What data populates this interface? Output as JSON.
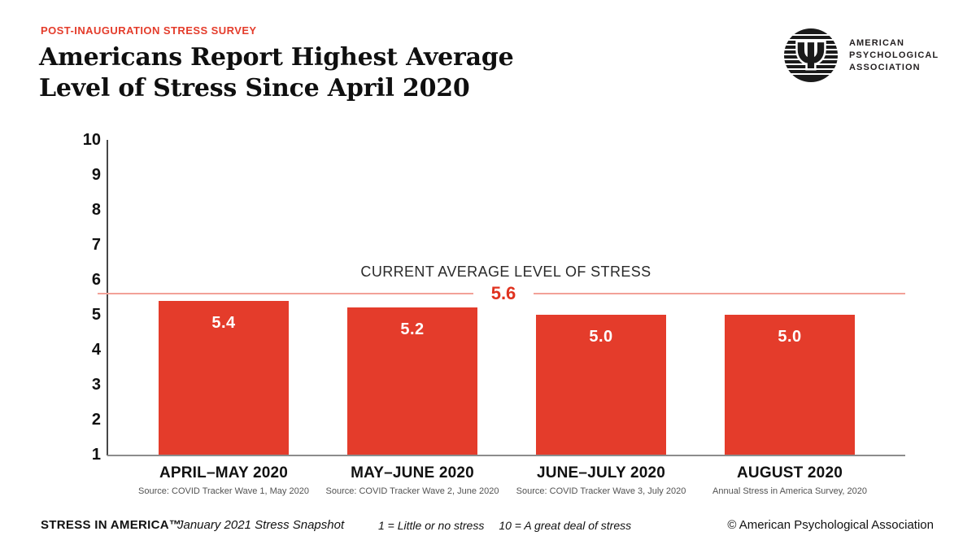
{
  "header": {
    "kicker": "POST-INAUGURATION STRESS SURVEY",
    "title_line1": "Americans Report Highest Average",
    "title_line2": "Level of Stress Since April 2020"
  },
  "logo": {
    "name": "American Psychological Association",
    "lines": [
      "AMERICAN",
      "PSYCHOLOGICAL",
      "ASSOCIATION"
    ]
  },
  "chart_data": {
    "type": "bar",
    "title": "Americans Report Highest Average Level of Stress Since April 2020",
    "categories": [
      "APRIL–MAY 2020",
      "MAY–JUNE 2020",
      "JUNE–JULY 2020",
      "AUGUST 2020"
    ],
    "category_sources": [
      "Source: COVID Tracker Wave 1, May 2020",
      "Source: COVID Tracker Wave 2, June 2020",
      "Source: COVID Tracker Wave 3, July 2020",
      "Annual Stress in America Survey, 2020"
    ],
    "values": [
      5.4,
      5.2,
      5.0,
      5.0
    ],
    "value_labels": [
      "5.4",
      "5.2",
      "5.0",
      "5.0"
    ],
    "reference_line": {
      "value": 5.6,
      "label": "5.6",
      "caption": "CURRENT AVERAGE LEVEL OF STRESS"
    },
    "ylim": [
      1,
      10
    ],
    "yticks": [
      10,
      9,
      8,
      7,
      6,
      5,
      4,
      3,
      2,
      1
    ],
    "grid": false,
    "legend": "none",
    "bar_color": "#e43c2b",
    "reference_line_color": "#f2a198",
    "value_label_color": "#ffffff",
    "scale_note_min": "1 = Little or no stress",
    "scale_note_max": "10 = A great deal of stress"
  },
  "footer": {
    "brand": "STRESS IN AMERICA™",
    "subtitle": "January 2021 Stress Snapshot",
    "scale_note_min": "1 = Little or no stress",
    "scale_note_max": "10 = A great deal of stress",
    "copyright": "© American Psychological Association"
  }
}
